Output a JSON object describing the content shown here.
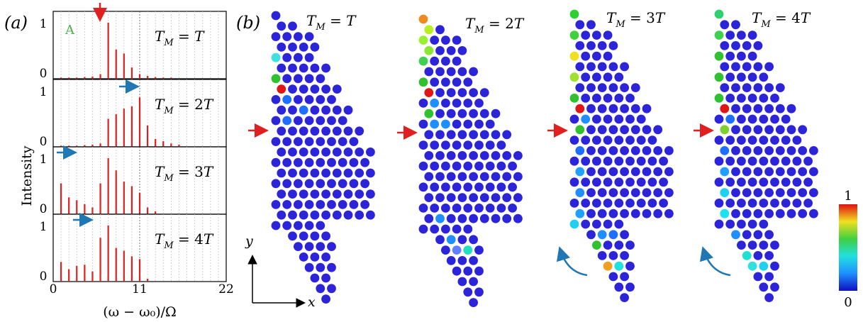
{
  "panel_a": {
    "label": "(a)",
    "ylabel": "Intensity",
    "xlabel": "(ω − ω₀)/Ω",
    "xticks": [
      "0",
      "11",
      "22"
    ],
    "ytick_top": "1",
    "ytick_bottom": "0",
    "annotation": "A",
    "colors": {
      "bars": "#e02020",
      "red_arrow": "#e02020",
      "blue_arrow": "#1f77b4",
      "annotation": "#4caf50"
    }
  },
  "panel_b": {
    "label": "(b)",
    "axis_x": "x",
    "axis_y": "y",
    "colorbar": {
      "max_label": "1",
      "min_label": "0"
    }
  },
  "chart_data": [
    {
      "type": "bar",
      "title": "T_M = T",
      "xlim": [
        0,
        22
      ],
      "ylim": [
        0,
        1.2
      ],
      "x": [
        1,
        2,
        3,
        4,
        5,
        6,
        7,
        8,
        9,
        10,
        11,
        12,
        13,
        14,
        15
      ],
      "values": [
        0.02,
        0.02,
        0.02,
        0.03,
        0.04,
        0.08,
        1.0,
        0.52,
        0.45,
        0.2,
        0.08,
        0.05,
        0.03,
        0.02,
        0.02
      ]
    },
    {
      "type": "bar",
      "title": "T_M = 2T",
      "xlim": [
        0,
        22
      ],
      "ylim": [
        0,
        1.2
      ],
      "x": [
        1,
        2,
        3,
        4,
        5,
        6,
        7,
        8,
        9,
        10,
        11,
        12,
        13,
        14,
        15,
        16
      ],
      "values": [
        0.02,
        0.02,
        0.02,
        0.03,
        0.04,
        0.06,
        0.5,
        0.58,
        0.68,
        0.72,
        0.88,
        0.38,
        0.14,
        0.1,
        0.06,
        0.04
      ]
    },
    {
      "type": "bar",
      "title": "T_M = 3T",
      "xlim": [
        0,
        22
      ],
      "ylim": [
        0,
        1.2
      ],
      "x": [
        1,
        2,
        3,
        4,
        5,
        6,
        7,
        8,
        9,
        10,
        11,
        12,
        13
      ],
      "values": [
        0.55,
        0.3,
        0.25,
        0.18,
        0.12,
        0.55,
        1.0,
        0.78,
        0.58,
        0.5,
        0.38,
        0.12,
        0.05
      ]
    },
    {
      "type": "bar",
      "title": "T_M = 4T",
      "xlim": [
        0,
        22
      ],
      "ylim": [
        0,
        1.2
      ],
      "x": [
        1,
        2,
        3,
        4,
        5,
        6,
        7,
        8,
        9,
        10,
        11,
        12
      ],
      "values": [
        0.35,
        0.22,
        0.28,
        0.3,
        0.18,
        0.78,
        1.0,
        0.6,
        0.55,
        0.45,
        0.4,
        0.05
      ]
    }
  ]
}
